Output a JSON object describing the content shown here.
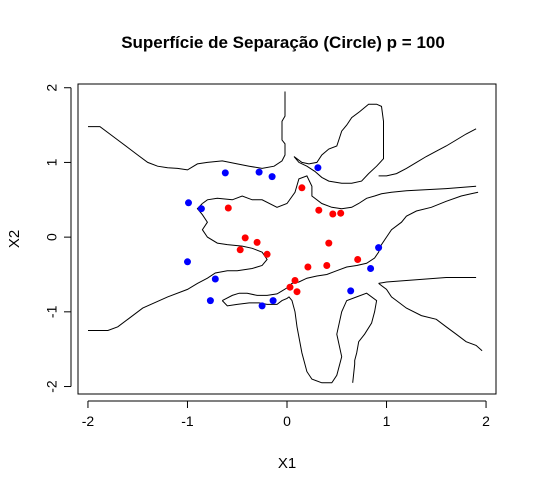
{
  "chart_data": {
    "type": "scatter",
    "title": "Superfície de Separação (Circle) p = 100",
    "xlabel": "X1",
    "ylabel": "X2",
    "xlim": [
      -2.1,
      2.1
    ],
    "ylim": [
      -2.1,
      2.05
    ],
    "x_ticks": [
      -2,
      -1,
      0,
      1,
      2
    ],
    "y_ticks": [
      -2,
      -1,
      0,
      1,
      2
    ],
    "grid": false,
    "legend": "none",
    "series": [
      {
        "color": "#0000ff",
        "points": [
          [
            -0.62,
            0.86
          ],
          [
            -0.28,
            0.87
          ],
          [
            -0.15,
            0.81
          ],
          [
            0.31,
            0.93
          ],
          [
            -0.99,
            0.46
          ],
          [
            -0.86,
            0.38
          ],
          [
            -1.0,
            -0.33
          ],
          [
            -0.72,
            -0.56
          ],
          [
            -0.77,
            -0.85
          ],
          [
            -0.25,
            -0.92
          ],
          [
            -0.14,
            -0.85
          ],
          [
            0.64,
            -0.72
          ],
          [
            0.84,
            -0.42
          ],
          [
            0.92,
            -0.14
          ]
        ]
      },
      {
        "color": "#ff0000",
        "points": [
          [
            0.15,
            0.66
          ],
          [
            -0.59,
            0.39
          ],
          [
            0.32,
            0.36
          ],
          [
            0.46,
            0.31
          ],
          [
            0.54,
            0.32
          ],
          [
            -0.42,
            -0.01
          ],
          [
            -0.3,
            -0.07
          ],
          [
            0.42,
            -0.08
          ],
          [
            -0.47,
            -0.17
          ],
          [
            -0.2,
            -0.23
          ],
          [
            0.71,
            -0.3
          ],
          [
            0.21,
            -0.4
          ],
          [
            0.4,
            -0.38
          ],
          [
            0.08,
            -0.58
          ],
          [
            0.03,
            -0.67
          ],
          [
            0.1,
            -0.73
          ]
        ]
      }
    ],
    "contours": [
      [
        [
          -2.0,
          1.48
        ],
        [
          -1.88,
          1.48
        ],
        [
          -1.78,
          1.38
        ],
        [
          -1.7,
          1.3
        ],
        [
          -1.6,
          1.2
        ],
        [
          -1.5,
          1.1
        ],
        [
          -1.4,
          1.0
        ],
        [
          -1.3,
          0.95
        ],
        [
          -1.2,
          0.93
        ],
        [
          -1.1,
          0.92
        ],
        [
          -1.0,
          0.9
        ],
        [
          -0.9,
          0.98
        ],
        [
          -0.8,
          1.0
        ],
        [
          -0.65,
          1.02
        ],
        [
          -0.5,
          0.98
        ],
        [
          -0.38,
          0.95
        ],
        [
          -0.25,
          0.92
        ],
        [
          -0.13,
          0.95
        ],
        [
          -0.05,
          1.02
        ],
        [
          -0.02,
          1.1
        ],
        [
          -0.02,
          1.25
        ],
        [
          -0.05,
          1.3
        ],
        [
          -0.05,
          1.55
        ],
        [
          -0.02,
          1.62
        ],
        [
          -0.02,
          1.95
        ]
      ],
      [
        [
          0.07,
          1.08
        ],
        [
          0.12,
          1.0
        ],
        [
          0.2,
          0.95
        ],
        [
          0.28,
          0.88
        ],
        [
          0.35,
          0.8
        ],
        [
          0.42,
          0.75
        ],
        [
          0.55,
          0.72
        ],
        [
          0.65,
          0.72
        ],
        [
          0.75,
          0.75
        ],
        [
          0.82,
          0.85
        ],
        [
          0.9,
          0.95
        ],
        [
          0.97,
          1.05
        ],
        [
          0.97,
          1.55
        ],
        [
          0.95,
          1.75
        ],
        [
          0.9,
          1.78
        ],
        [
          0.82,
          1.78
        ],
        [
          0.73,
          1.68
        ],
        [
          0.65,
          1.6
        ],
        [
          0.6,
          1.5
        ],
        [
          0.55,
          1.42
        ],
        [
          0.52,
          1.3
        ],
        [
          0.5,
          1.22
        ],
        [
          0.42,
          1.18
        ],
        [
          0.35,
          1.1
        ],
        [
          0.3,
          1.0
        ],
        [
          0.22,
          0.98
        ],
        [
          0.15,
          1.0
        ],
        [
          0.07,
          1.08
        ]
      ],
      [
        [
          -0.85,
          0.45
        ],
        [
          -0.8,
          0.5
        ],
        [
          -0.7,
          0.52
        ],
        [
          -0.55,
          0.5
        ],
        [
          -0.45,
          0.55
        ],
        [
          -0.35,
          0.5
        ],
        [
          -0.25,
          0.5
        ],
        [
          -0.1,
          0.4
        ],
        [
          0.0,
          0.45
        ],
        [
          0.08,
          0.6
        ],
        [
          0.12,
          0.78
        ],
        [
          0.2,
          0.82
        ],
        [
          0.25,
          0.68
        ],
        [
          0.25,
          0.55
        ],
        [
          0.35,
          0.45
        ],
        [
          0.45,
          0.4
        ],
        [
          0.55,
          0.38
        ],
        [
          0.65,
          0.4
        ],
        [
          0.72,
          0.45
        ],
        [
          0.8,
          0.52
        ],
        [
          0.88,
          0.55
        ],
        [
          0.95,
          0.58
        ],
        [
          1.05,
          0.6
        ],
        [
          1.2,
          0.62
        ],
        [
          1.6,
          0.65
        ],
        [
          1.9,
          0.68
        ]
      ],
      [
        [
          -0.85,
          0.45
        ],
        [
          -0.9,
          0.38
        ],
        [
          -0.85,
          0.3
        ],
        [
          -0.8,
          0.2
        ],
        [
          -0.85,
          0.1
        ],
        [
          -0.8,
          0.0
        ],
        [
          -0.7,
          -0.08
        ],
        [
          -0.6,
          -0.1
        ],
        [
          -0.45,
          -0.12
        ],
        [
          -0.35,
          -0.15
        ],
        [
          -0.25,
          -0.2
        ],
        [
          -0.2,
          -0.3
        ],
        [
          -0.25,
          -0.38
        ],
        [
          -0.35,
          -0.42
        ],
        [
          -0.5,
          -0.45
        ],
        [
          -0.6,
          -0.45
        ],
        [
          -0.72,
          -0.48
        ],
        [
          -0.8,
          -0.55
        ],
        [
          -0.9,
          -0.62
        ],
        [
          -1.0,
          -0.7
        ],
        [
          -1.2,
          -0.8
        ],
        [
          -1.45,
          -0.95
        ],
        [
          -1.6,
          -1.1
        ],
        [
          -1.7,
          -1.2
        ],
        [
          -1.8,
          -1.25
        ],
        [
          -2.0,
          -1.25
        ]
      ],
      [
        [
          -0.65,
          -0.85
        ],
        [
          -0.55,
          -0.78
        ],
        [
          -0.48,
          -0.75
        ],
        [
          -0.4,
          -0.75
        ],
        [
          -0.3,
          -0.78
        ],
        [
          -0.2,
          -0.78
        ],
        [
          -0.1,
          -0.76
        ],
        [
          -0.05,
          -0.72
        ],
        [
          0.0,
          -0.68
        ],
        [
          0.05,
          -0.62
        ],
        [
          0.12,
          -0.6
        ],
        [
          0.2,
          -0.55
        ],
        [
          0.3,
          -0.52
        ],
        [
          0.4,
          -0.5
        ],
        [
          0.5,
          -0.45
        ],
        [
          0.6,
          -0.4
        ],
        [
          0.7,
          -0.38
        ],
        [
          0.8,
          -0.35
        ],
        [
          0.88,
          -0.28
        ],
        [
          0.92,
          -0.2
        ],
        [
          0.95,
          -0.1
        ],
        [
          1.0,
          0.0
        ],
        [
          1.05,
          0.1
        ],
        [
          1.15,
          0.2
        ],
        [
          1.2,
          0.28
        ],
        [
          1.3,
          0.35
        ],
        [
          1.45,
          0.4
        ],
        [
          1.6,
          0.48
        ],
        [
          1.75,
          0.55
        ],
        [
          1.85,
          0.58
        ],
        [
          1.92,
          0.6
        ]
      ],
      [
        [
          -0.65,
          -0.85
        ],
        [
          -0.6,
          -0.92
        ],
        [
          -0.5,
          -0.9
        ],
        [
          -0.38,
          -0.88
        ],
        [
          -0.28,
          -0.88
        ],
        [
          -0.2,
          -0.9
        ],
        [
          -0.1,
          -0.9
        ],
        [
          -0.05,
          -0.85
        ],
        [
          0.0,
          -0.82
        ],
        [
          0.02,
          -0.8
        ],
        [
          0.05,
          -0.85
        ],
        [
          0.08,
          -1.0
        ],
        [
          0.1,
          -1.2
        ],
        [
          0.15,
          -1.55
        ],
        [
          0.2,
          -1.8
        ],
        [
          0.25,
          -1.9
        ],
        [
          0.35,
          -1.95
        ],
        [
          0.45,
          -1.95
        ],
        [
          0.5,
          -1.85
        ],
        [
          0.55,
          -1.6
        ],
        [
          0.5,
          -1.3
        ],
        [
          0.55,
          -1.0
        ],
        [
          0.6,
          -0.85
        ],
        [
          0.7,
          -0.8
        ],
        [
          0.8,
          -0.75
        ],
        [
          0.9,
          -0.85
        ],
        [
          0.88,
          -1.0
        ],
        [
          0.85,
          -1.15
        ],
        [
          0.78,
          -1.3
        ],
        [
          0.72,
          -1.4
        ],
        [
          0.7,
          -1.55
        ],
        [
          0.68,
          -1.65
        ],
        [
          0.68,
          -1.7
        ],
        [
          0.66,
          -1.95
        ]
      ],
      [
        [
          0.92,
          -0.62
        ],
        [
          1.0,
          -0.7
        ],
        [
          1.05,
          -0.8
        ],
        [
          1.1,
          -0.85
        ],
        [
          1.2,
          -0.95
        ],
        [
          1.35,
          -1.05
        ],
        [
          1.5,
          -1.1
        ],
        [
          1.6,
          -1.2
        ],
        [
          1.7,
          -1.3
        ],
        [
          1.8,
          -1.4
        ],
        [
          1.9,
          -1.45
        ],
        [
          1.96,
          -1.52
        ]
      ],
      [
        [
          0.92,
          -0.62
        ],
        [
          1.0,
          -0.6
        ],
        [
          1.2,
          -0.58
        ],
        [
          1.4,
          -0.56
        ],
        [
          1.6,
          -0.54
        ],
        [
          1.8,
          -0.54
        ],
        [
          1.9,
          -0.54
        ]
      ],
      [
        [
          1.9,
          1.45
        ],
        [
          1.8,
          1.38
        ],
        [
          1.7,
          1.3
        ],
        [
          1.6,
          1.22
        ],
        [
          1.5,
          1.15
        ],
        [
          1.4,
          1.08
        ],
        [
          1.3,
          1.0
        ],
        [
          1.2,
          0.92
        ],
        [
          1.1,
          0.85
        ],
        [
          1.0,
          0.82
        ],
        [
          0.92,
          0.82
        ]
      ]
    ]
  }
}
